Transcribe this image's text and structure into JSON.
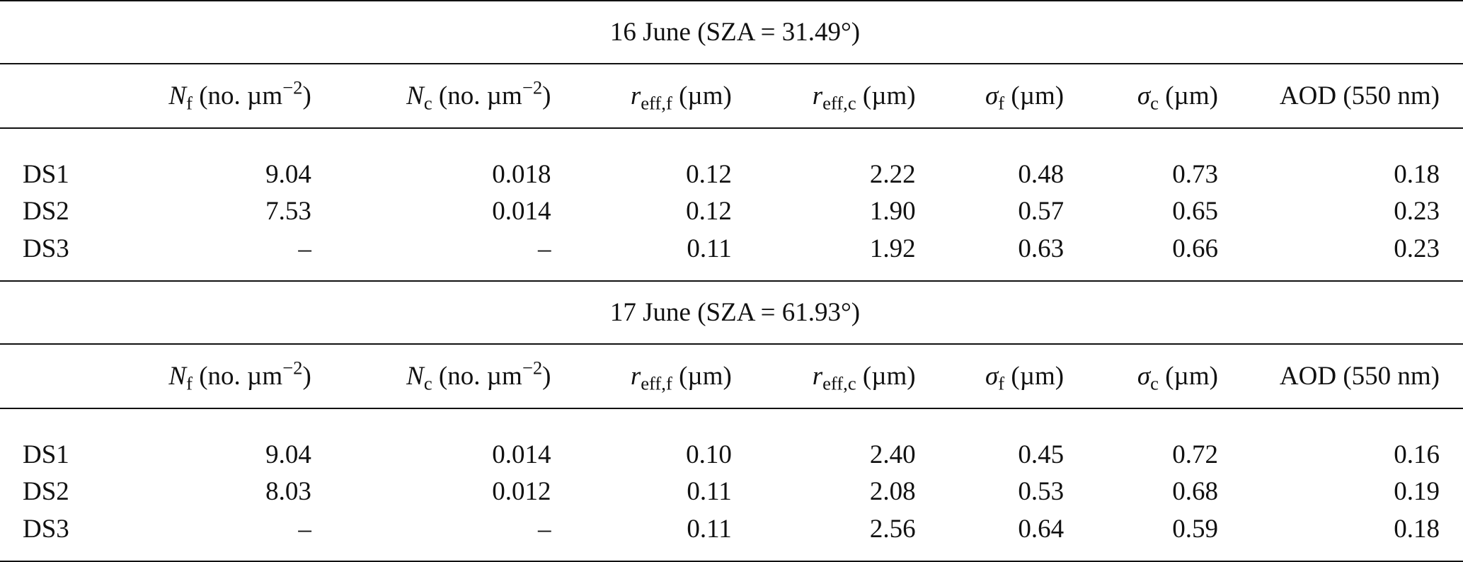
{
  "columns": {
    "nf": {
      "symbol": "N",
      "sub": "f",
      "unit": "(no. µm",
      "unit_exp": "−2",
      "unit_close": ")"
    },
    "nc": {
      "symbol": "N",
      "sub": "c",
      "unit": "(no. µm",
      "unit_exp": "−2",
      "unit_close": ")"
    },
    "reff_f": {
      "symbol": "r",
      "sub": "eff,f",
      "unit": "(µm)"
    },
    "reff_c": {
      "symbol": "r",
      "sub": "eff,c",
      "unit": "(µm)"
    },
    "sigma_f": {
      "symbol": "σ",
      "sub": "f",
      "unit": "(µm)"
    },
    "sigma_c": {
      "symbol": "σ",
      "sub": "c",
      "unit": "(µm)"
    },
    "aod": {
      "label": "AOD (550 nm)"
    }
  },
  "sections": [
    {
      "title": "16 June (SZA = 31.49°)",
      "rows": [
        {
          "label": "DS1",
          "nf": "9.04",
          "nc": "0.018",
          "reff_f": "0.12",
          "reff_c": "2.22",
          "sigma_f": "0.48",
          "sigma_c": "0.73",
          "aod": "0.18"
        },
        {
          "label": "DS2",
          "nf": "7.53",
          "nc": "0.014",
          "reff_f": "0.12",
          "reff_c": "1.90",
          "sigma_f": "0.57",
          "sigma_c": "0.65",
          "aod": "0.23"
        },
        {
          "label": "DS3",
          "nf": "–",
          "nc": "–",
          "reff_f": "0.11",
          "reff_c": "1.92",
          "sigma_f": "0.63",
          "sigma_c": "0.66",
          "aod": "0.23"
        }
      ]
    },
    {
      "title": "17 June (SZA = 61.93°)",
      "rows": [
        {
          "label": "DS1",
          "nf": "9.04",
          "nc": "0.014",
          "reff_f": "0.10",
          "reff_c": "2.40",
          "sigma_f": "0.45",
          "sigma_c": "0.72",
          "aod": "0.16"
        },
        {
          "label": "DS2",
          "nf": "8.03",
          "nc": "0.012",
          "reff_f": "0.11",
          "reff_c": "2.08",
          "sigma_f": "0.53",
          "sigma_c": "0.68",
          "aod": "0.19"
        },
        {
          "label": "DS3",
          "nf": "–",
          "nc": "–",
          "reff_f": "0.11",
          "reff_c": "2.56",
          "sigma_f": "0.64",
          "sigma_c": "0.59",
          "aod": "0.18"
        }
      ]
    }
  ]
}
